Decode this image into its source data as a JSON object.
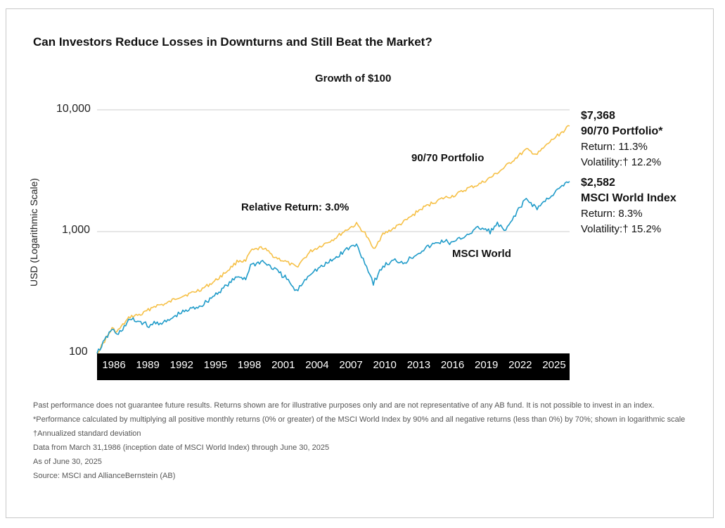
{
  "title": "Can Investors Reduce Losses in Downturns and Still Beat the Market?",
  "subtitle": "Growth of $100",
  "colors": {
    "portfolio": "#F6C046",
    "msci": "#1F9BC9",
    "axis_bar": "#000000",
    "grid": "#cccccc"
  },
  "annotations": {
    "relative_return": "Relative Return: 3.0%",
    "portfolio_label": "90/70 Portfolio",
    "msci_label": "MSCI World"
  },
  "side_panel": {
    "portfolio": {
      "value": "$7,368",
      "name": "90/70 Portfolio*",
      "return": "Return: 11.3%",
      "volatility": "Volatility:† 12.2%"
    },
    "msci": {
      "value": "$2,582",
      "name": "MSCI World Index",
      "return": "Return: 8.3%",
      "volatility": "Volatility:† 15.2%"
    }
  },
  "footnotes": [
    "Past performance does not guarantee future results. Returns shown are for illustrative purposes only and are not representative of any AB fund. It is not possible to invest in an index.",
    "*Performance calculated by multiplying all positive monthly returns (0% or greater) of the MSCI World Index by 90% and all negative returns (less than 0%) by 70%; shown in logarithmic scale",
    "†Annualized standard deviation",
    "Data from March 31,1986 (inception date of MSCI World Index) through June 30, 2025",
    "As of June 30, 2025",
    "Source: MSCI and AllianceBernstein (AB)"
  ],
  "chart_data": {
    "type": "line",
    "title": "Growth of $100",
    "ylabel": "USD (Logarithmic Scale)",
    "xlabel": "",
    "yscale": "log",
    "ylim": [
      100,
      10000
    ],
    "xlim": [
      1986.25,
      2025.5
    ],
    "yticks": [
      10000,
      1000,
      100
    ],
    "ytick_labels": [
      "10,000",
      "1,000",
      "100"
    ],
    "xtick_labels": [
      "1986",
      "1989",
      "1992",
      "1995",
      "1998",
      "2001",
      "2004",
      "2007",
      "2010",
      "2013",
      "2016",
      "2019",
      "2022",
      "2025"
    ],
    "grid": "horizontal",
    "series": [
      {
        "name": "90/70 Portfolio",
        "x": [
          1986.25,
          1987.5,
          1987.9,
          1989.0,
          1990.0,
          1991.0,
          1992.0,
          1993.0,
          1994.0,
          1995.0,
          1996.0,
          1997.0,
          1998.0,
          1998.6,
          1999.0,
          2000.0,
          2001.0,
          2002.0,
          2002.8,
          2003.5,
          2004.0,
          2005.0,
          2006.0,
          2007.0,
          2007.8,
          2008.5,
          2009.2,
          2010.0,
          2011.0,
          2012.0,
          2013.0,
          2014.0,
          2015.0,
          2016.0,
          2017.0,
          2018.0,
          2019.0,
          2020.0,
          2021.0,
          2021.9,
          2022.8,
          2024.0,
          2025.5
        ],
        "values": [
          100,
          160,
          150,
          200,
          210,
          245,
          255,
          290,
          310,
          340,
          390,
          470,
          580,
          570,
          690,
          740,
          620,
          560,
          510,
          610,
          690,
          780,
          880,
          1040,
          1150,
          970,
          720,
          950,
          1080,
          1250,
          1500,
          1700,
          1880,
          1990,
          2250,
          2450,
          2800,
          3300,
          4000,
          4700,
          4300,
          5600,
          7368
        ]
      },
      {
        "name": "MSCI World",
        "x": [
          1986.25,
          1987.5,
          1987.9,
          1989.0,
          1990.0,
          1990.7,
          1991.0,
          1992.0,
          1993.0,
          1994.0,
          1995.0,
          1996.0,
          1997.0,
          1998.0,
          1998.6,
          1999.0,
          2000.0,
          2001.0,
          2002.0,
          2002.8,
          2003.5,
          2004.0,
          2005.0,
          2006.0,
          2007.0,
          2007.8,
          2008.5,
          2009.2,
          2010.0,
          2011.0,
          2011.8,
          2013.0,
          2014.0,
          2015.0,
          2015.8,
          2017.0,
          2018.0,
          2018.9,
          2019.5,
          2020.2,
          2021.0,
          2021.9,
          2022.8,
          2024.0,
          2025.5
        ],
        "values": [
          100,
          160,
          140,
          190,
          180,
          165,
          178,
          180,
          210,
          230,
          250,
          300,
          360,
          430,
          410,
          530,
          570,
          490,
          410,
          320,
          400,
          460,
          520,
          600,
          720,
          780,
          560,
          380,
          520,
          580,
          560,
          680,
          770,
          840,
          800,
          950,
          1080,
          1000,
          1150,
          1000,
          1400,
          1850,
          1550,
          2000,
          2582
        ]
      }
    ]
  }
}
